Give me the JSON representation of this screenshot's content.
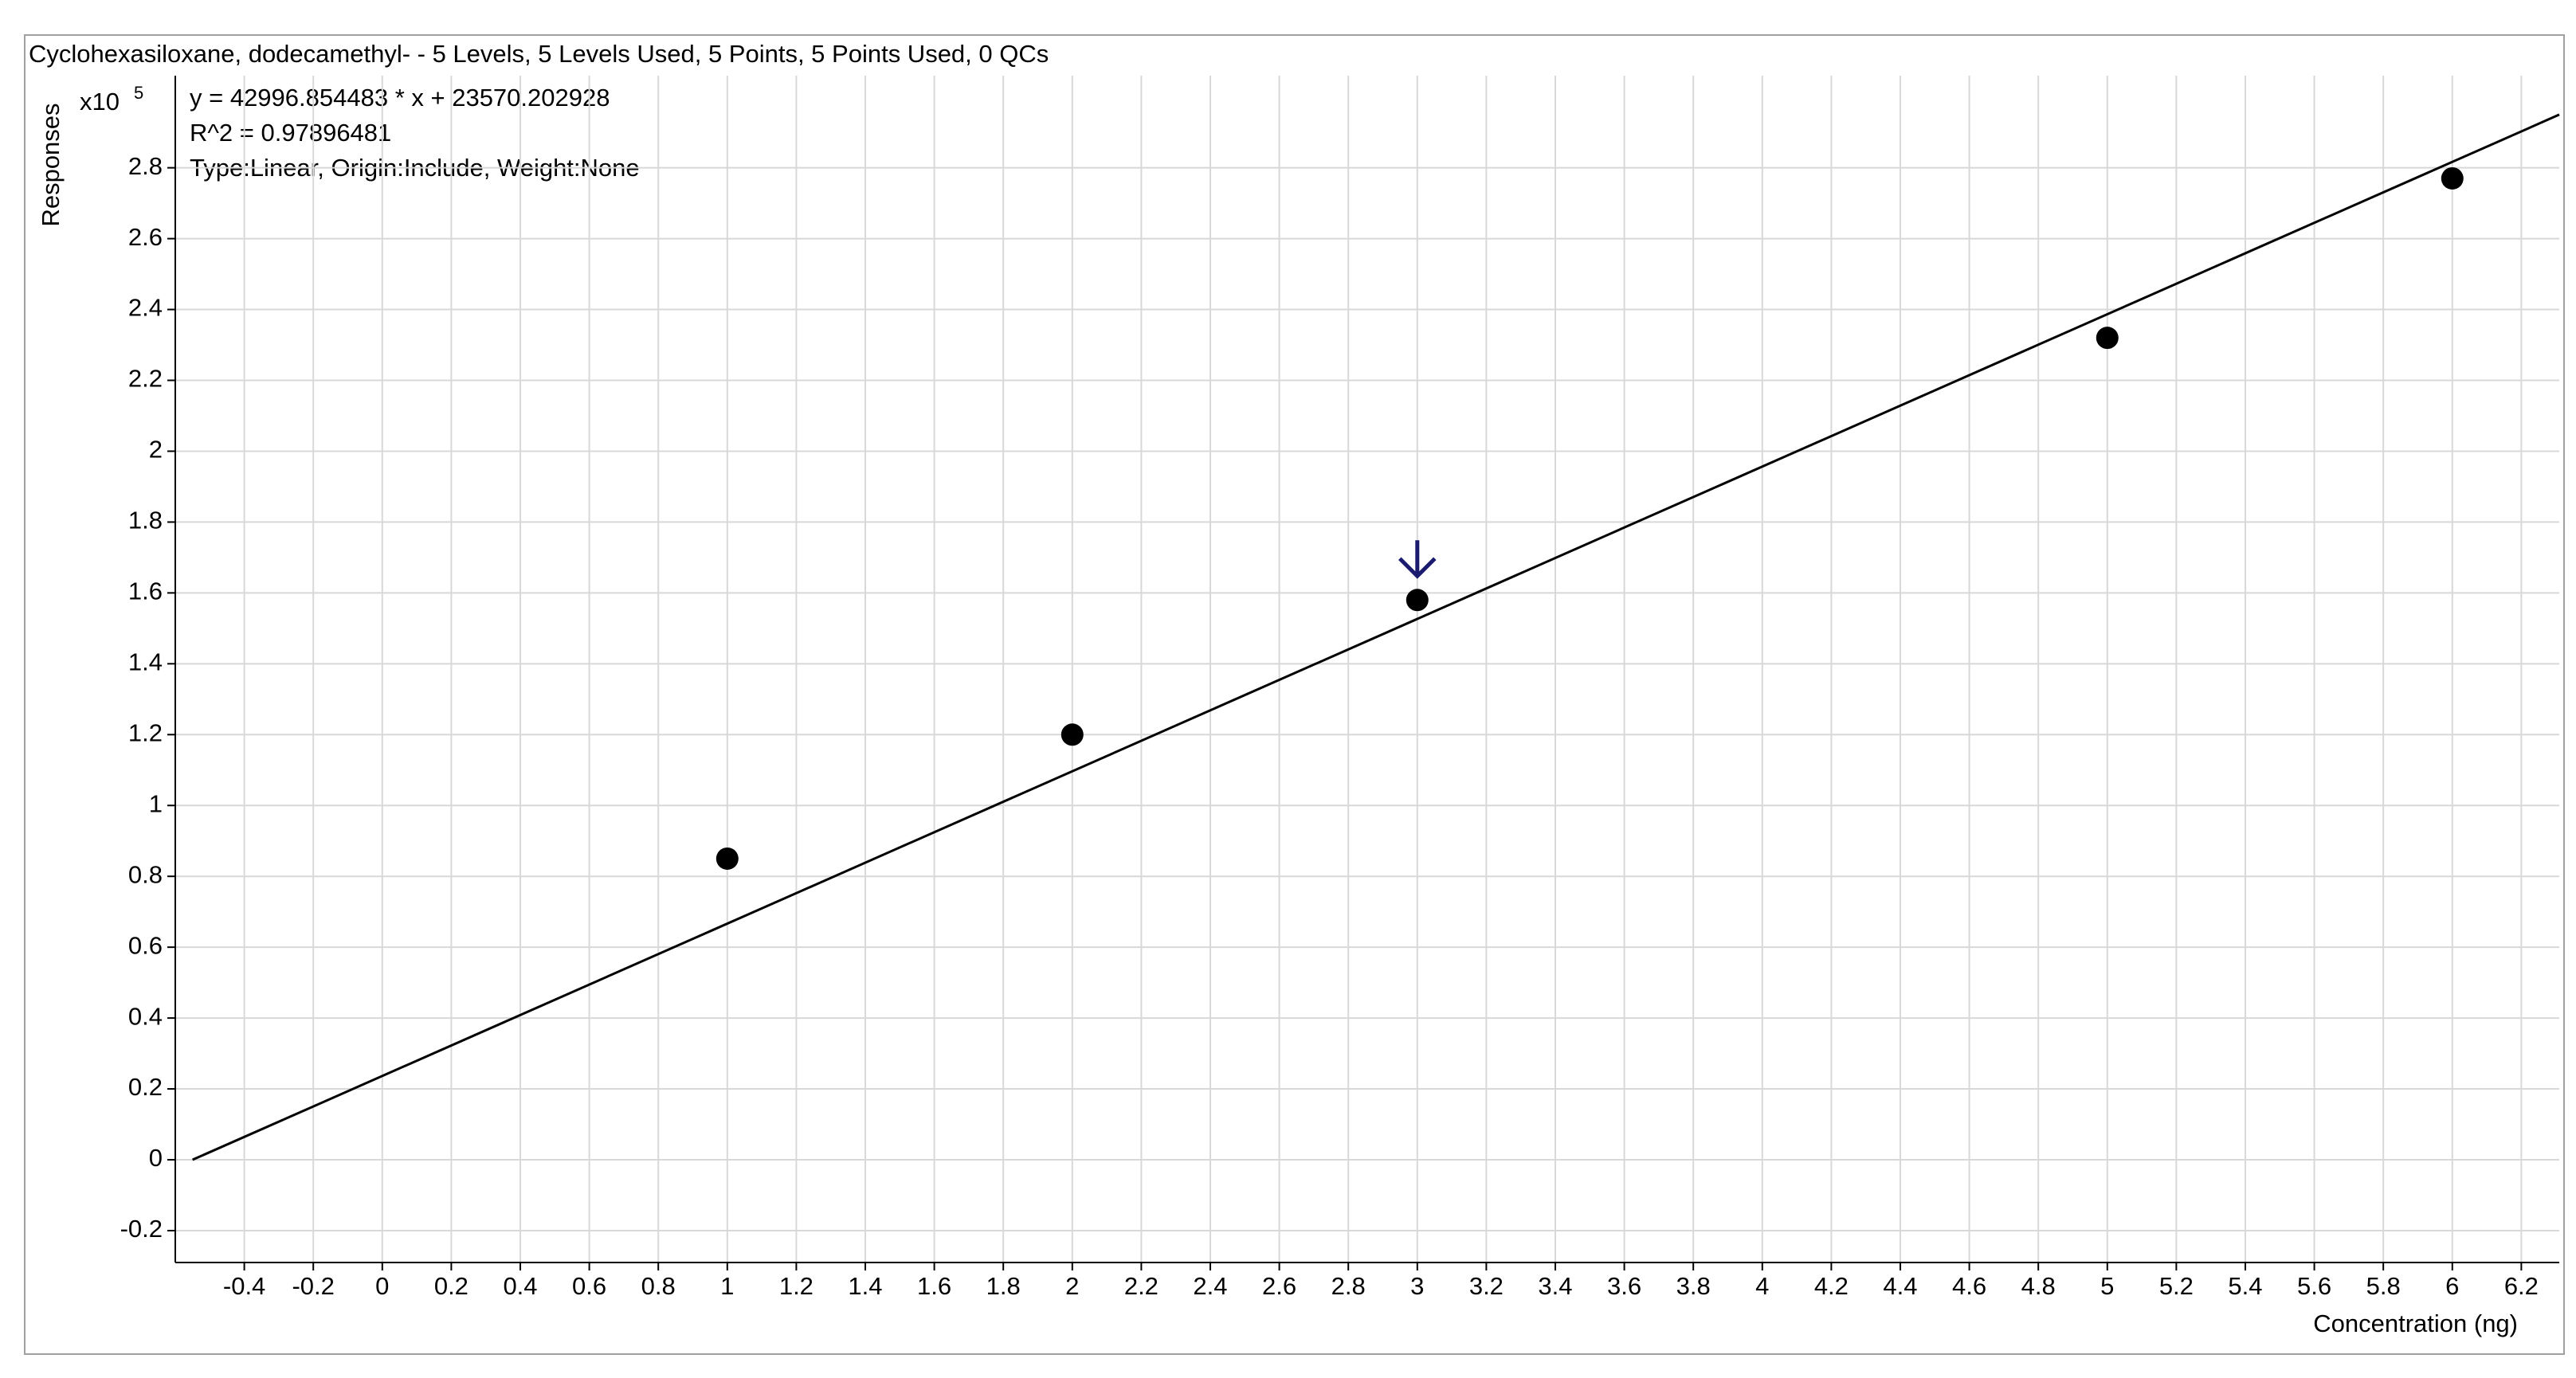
{
  "chart_data": {
    "type": "scatter",
    "title": "Cyclohexasiloxane, dodecamethyl- - 5 Levels, 5 Levels Used, 5 Points, 5 Points Used, 0 QCs",
    "equation": "y = 42996.854483 * x  + 23570.202928",
    "r_squared": "R^2 = 0.97896481",
    "fit_info": "Type:Linear, Origin:Include, Weight:None",
    "y_multiplier": "x10",
    "y_multiplier_exponent": "5",
    "xlabel": "Concentration (ng)",
    "ylabel": "Responses",
    "x": [
      1,
      2,
      3,
      5,
      6
    ],
    "values": [
      0.85,
      1.2,
      1.58,
      2.32,
      2.77
    ],
    "color": "#000000",
    "fit_line": {
      "x": [
        -0.55,
        6.31
      ],
      "values": [
        0,
        2.95
      ],
      "color": "#000000"
    },
    "xlim": [
      -0.6,
      6.31
    ],
    "ylim": [
      -0.29,
      3.06
    ],
    "xticks": [
      -0.4,
      -0.2,
      0,
      0.2,
      0.4,
      0.6,
      0.8,
      1,
      1.2,
      1.4,
      1.6,
      1.8,
      2,
      2.2,
      2.4,
      2.6,
      2.8,
      3,
      3.2,
      3.4,
      3.6,
      3.8,
      4,
      4.2,
      4.4,
      4.6,
      4.8,
      5,
      5.2,
      5.4,
      5.6,
      5.8,
      6,
      6.2
    ],
    "yticks": [
      -0.2,
      0,
      0.2,
      0.4,
      0.6,
      0.8,
      1,
      1.2,
      1.4,
      1.6,
      1.8,
      2,
      2.2,
      2.4,
      2.6,
      2.8
    ],
    "grid": true
  }
}
